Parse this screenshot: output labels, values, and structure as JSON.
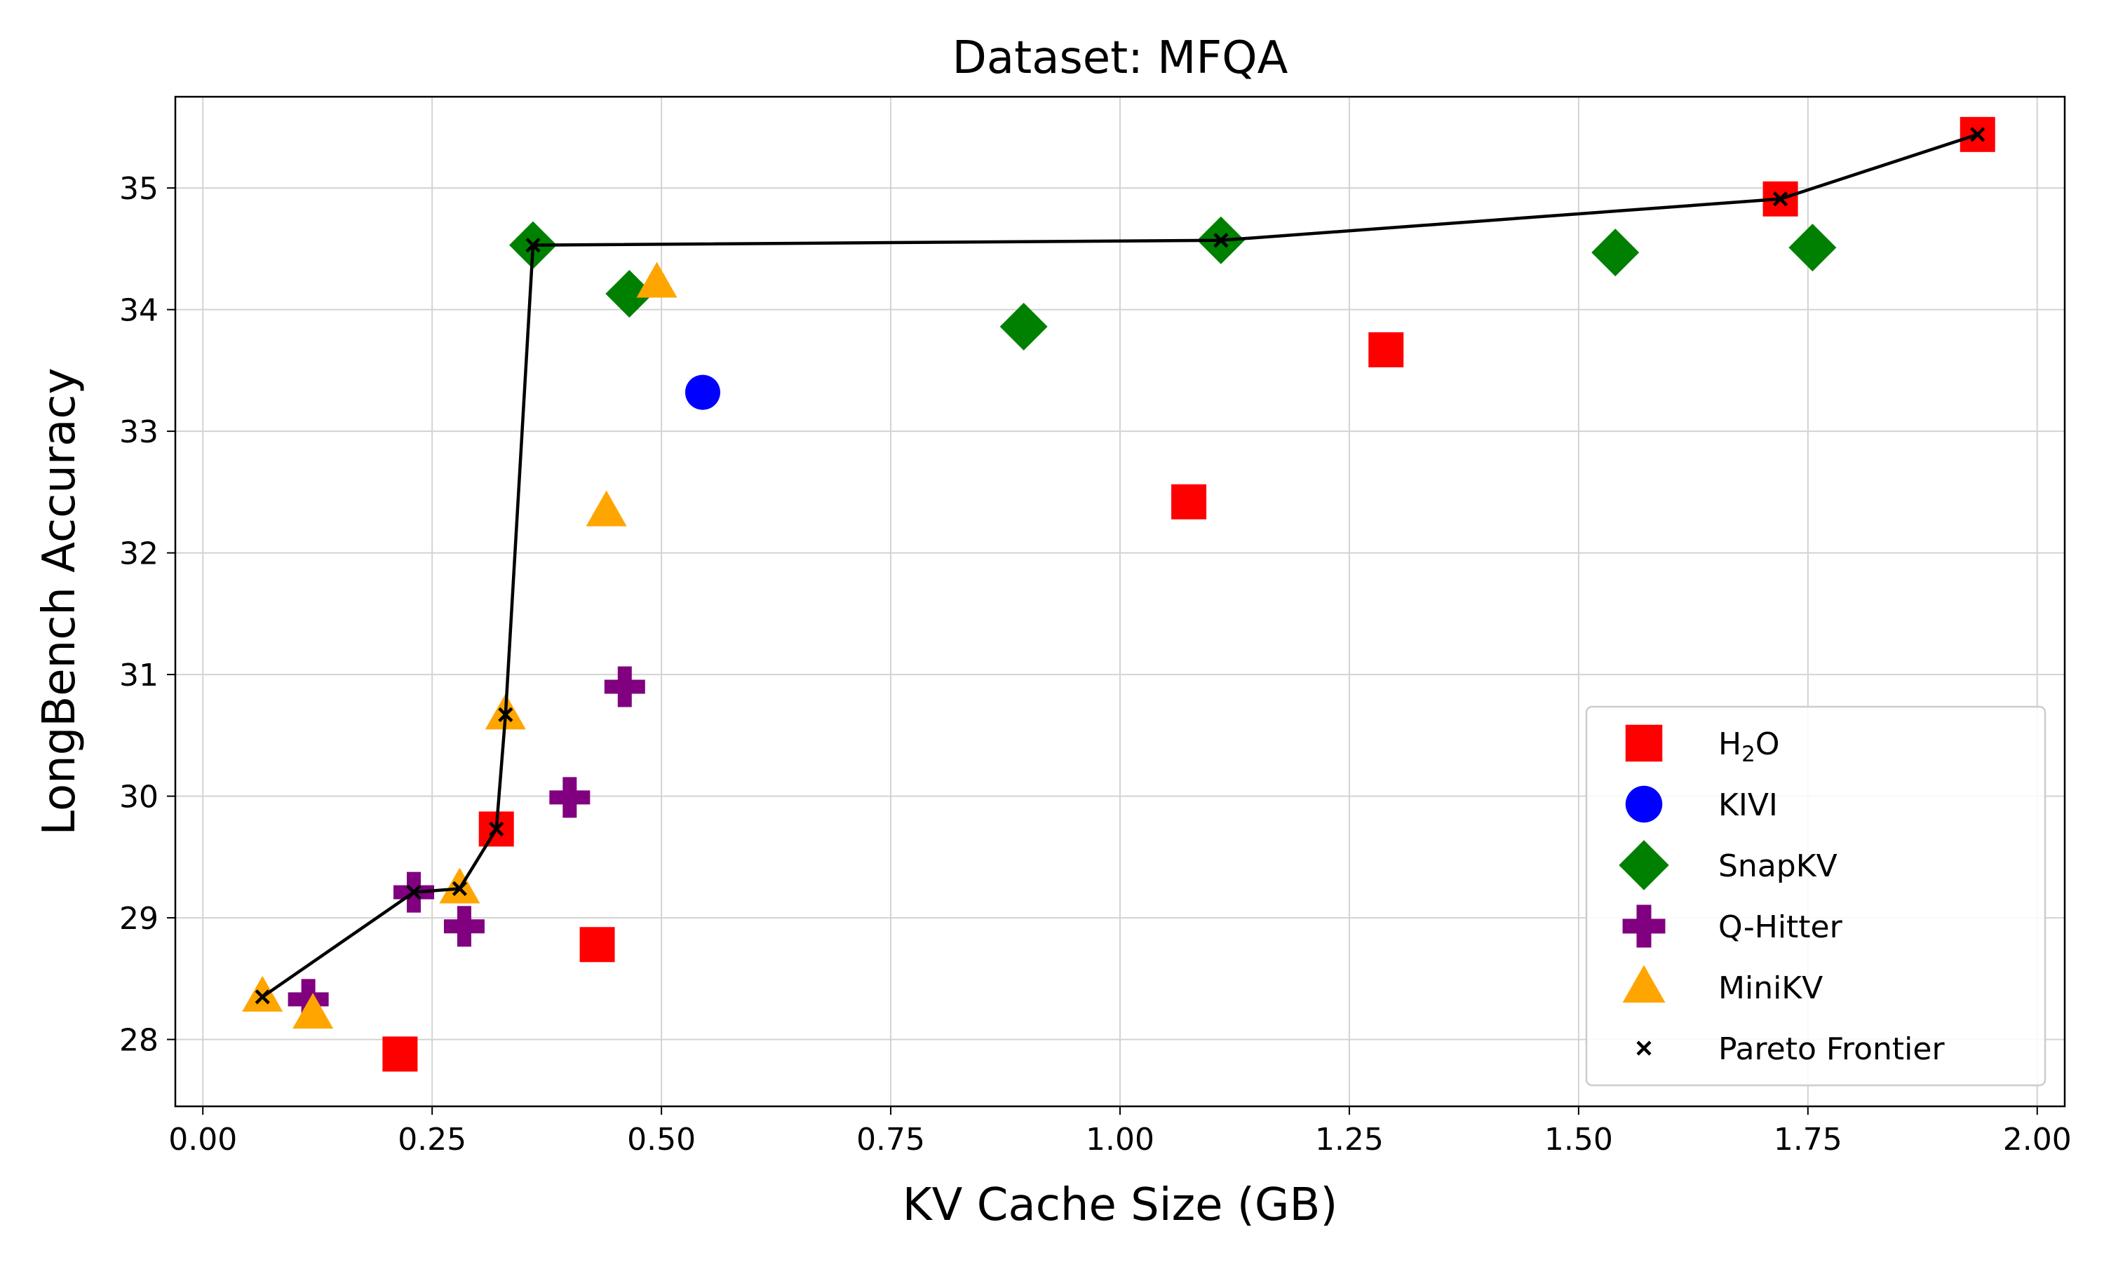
{
  "chart_data": {
    "type": "scatter",
    "title": "Dataset: MFQA",
    "xlabel": "KV Cache Size (GB)",
    "ylabel": "LongBench Accuracy",
    "xlim": [
      -0.03,
      2.03
    ],
    "ylim": [
      27.45,
      35.75
    ],
    "xticks": [
      0.0,
      0.25,
      0.5,
      0.75,
      1.0,
      1.25,
      1.5,
      1.75,
      2.0
    ],
    "xtick_labels": [
      "0.00",
      "0.25",
      "0.50",
      "0.75",
      "1.00",
      "1.25",
      "1.50",
      "1.75",
      "2.00"
    ],
    "yticks": [
      28,
      29,
      30,
      31,
      32,
      33,
      34,
      35
    ],
    "ytick_labels": [
      "28",
      "29",
      "30",
      "31",
      "32",
      "33",
      "34",
      "35"
    ],
    "grid": true,
    "legend_position": "lower-right",
    "series": [
      {
        "name": "H2O",
        "label_main": "H",
        "label_sub": "2",
        "label_end": "O",
        "marker": "square",
        "color": "#ff0000",
        "points": [
          [
            0.215,
            27.88
          ],
          [
            0.32,
            29.73
          ],
          [
            0.43,
            28.78
          ],
          [
            1.075,
            32.42
          ],
          [
            1.29,
            33.67
          ],
          [
            1.72,
            34.91
          ],
          [
            1.935,
            35.44
          ]
        ]
      },
      {
        "name": "KIVI",
        "marker": "circle",
        "color": "#0000ff",
        "points": [
          [
            0.545,
            33.32
          ]
        ]
      },
      {
        "name": "SnapKV",
        "marker": "diamond",
        "color": "#008000",
        "points": [
          [
            0.36,
            34.53
          ],
          [
            0.465,
            34.13
          ],
          [
            0.895,
            33.86
          ],
          [
            1.11,
            34.57
          ],
          [
            1.54,
            34.47
          ],
          [
            1.755,
            34.51
          ]
        ]
      },
      {
        "name": "Q-Hitter",
        "marker": "plus",
        "color": "#800080",
        "points": [
          [
            0.115,
            28.33
          ],
          [
            0.23,
            29.21
          ],
          [
            0.285,
            28.93
          ],
          [
            0.4,
            29.99
          ],
          [
            0.46,
            30.9
          ]
        ]
      },
      {
        "name": "MiniKV",
        "marker": "triangle",
        "color": "#ffa500",
        "points": [
          [
            0.065,
            28.35
          ],
          [
            0.12,
            28.21
          ],
          [
            0.28,
            29.24
          ],
          [
            0.33,
            30.67
          ],
          [
            0.44,
            32.34
          ],
          [
            0.495,
            34.22
          ]
        ]
      }
    ],
    "pareto_frontier": {
      "name": "Pareto Frontier",
      "marker": "x",
      "color": "#000000",
      "points": [
        [
          0.065,
          28.35
        ],
        [
          0.23,
          29.21
        ],
        [
          0.28,
          29.24
        ],
        [
          0.32,
          29.73
        ],
        [
          0.33,
          30.67
        ],
        [
          0.36,
          34.53
        ],
        [
          1.11,
          34.57
        ],
        [
          1.72,
          34.91
        ],
        [
          1.935,
          35.44
        ]
      ]
    }
  }
}
